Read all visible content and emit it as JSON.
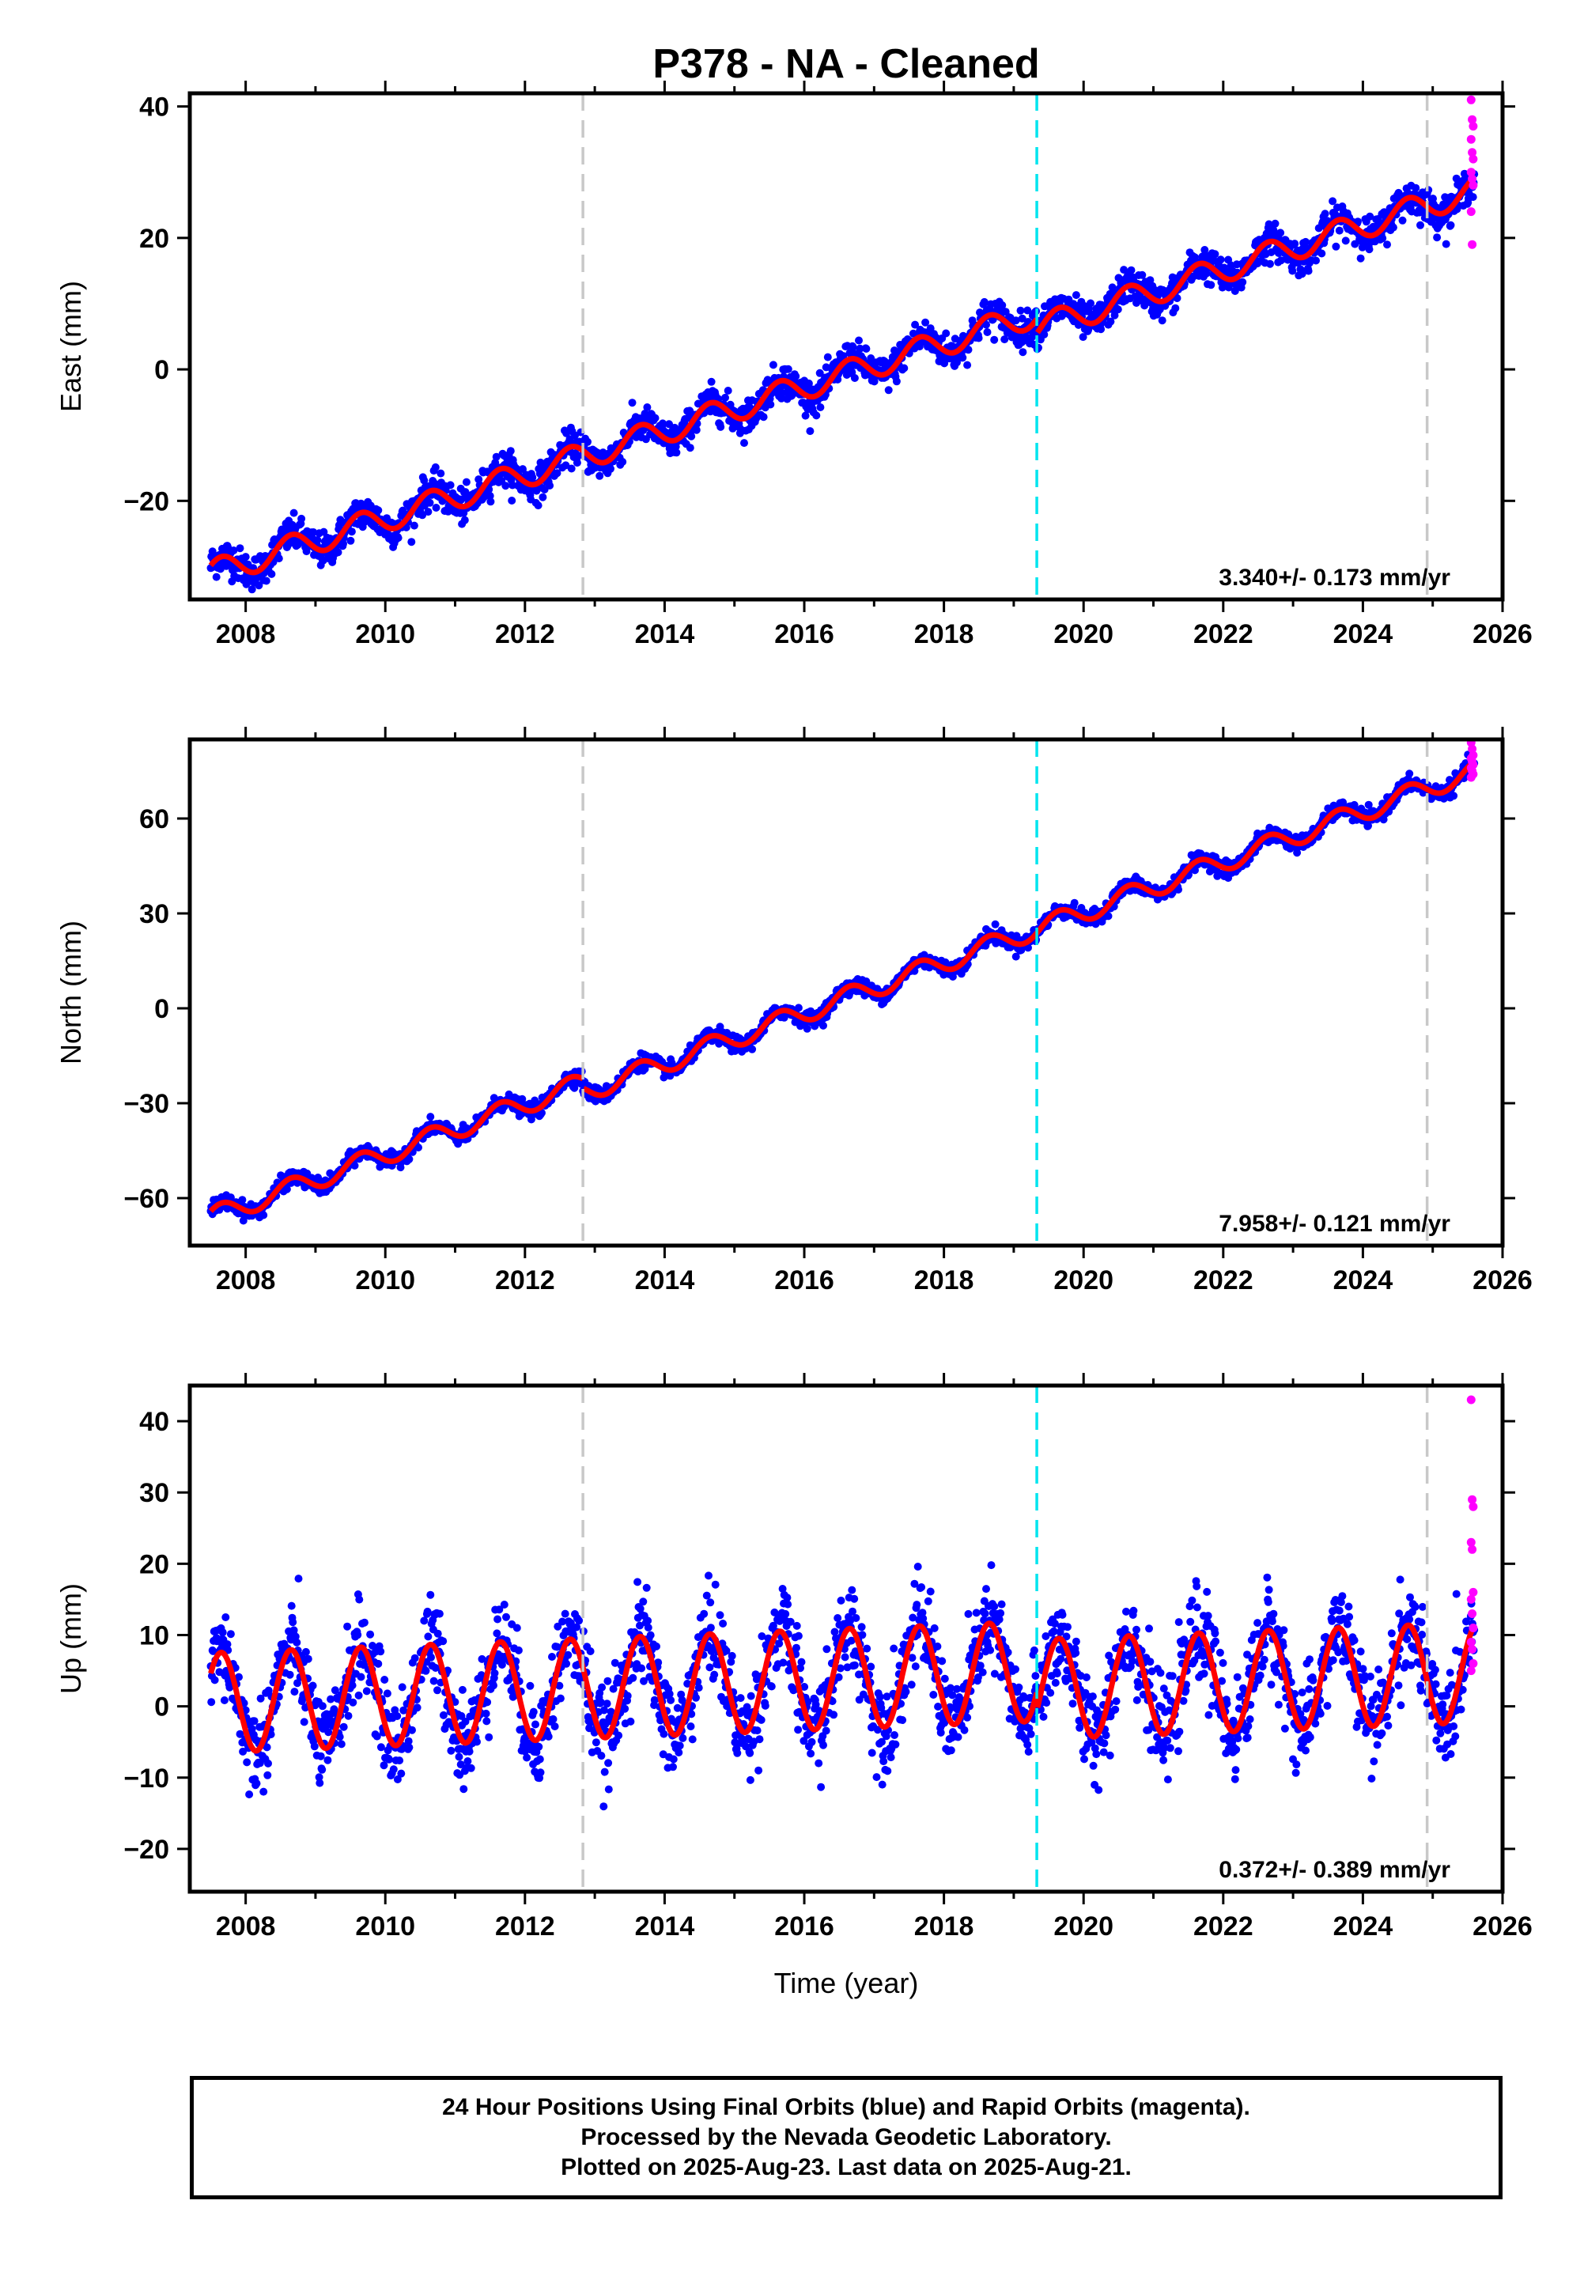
{
  "title": "P378  - NA - Cleaned",
  "colors": {
    "final_points": "#0000ff",
    "rapid_points": "#ff00ff",
    "model": "#ff0000",
    "equipment_change": "#c8c8c8",
    "earthquake": "#00e5ee",
    "frame": "#000000"
  },
  "chart_data": [
    {
      "type": "scatter",
      "ylabel": "East (mm)",
      "xlabel": "",
      "xlim": [
        2007.2,
        2026.0
      ],
      "ylim": [
        -35,
        42
      ],
      "x_ticks": [
        2008,
        2010,
        2012,
        2014,
        2016,
        2018,
        2020,
        2022,
        2024,
        2026
      ],
      "y_ticks": [
        -20,
        0,
        20,
        40
      ],
      "y_tick_labels": [
        "−20",
        "0",
        "20",
        "40"
      ],
      "rate_text": "3.340+/- 0.173 mm/yr",
      "trend_mm_per_yr": 3.34,
      "start_year": 2007.5,
      "end_year": 2025.6,
      "start_value": -31,
      "seasonal_amplitude": 2.0,
      "scatter_sd": 1.3,
      "offsets": [
        {
          "year": 2019.33,
          "value": -2.2
        }
      ],
      "rapid_values": [
        41,
        38,
        37,
        35,
        33,
        32,
        30,
        29,
        28,
        24,
        19
      ],
      "vlines": [
        {
          "year": 2012.83,
          "kind": "equipment_change"
        },
        {
          "year": 2019.33,
          "kind": "earthquake"
        },
        {
          "year": 2024.92,
          "kind": "equipment_change"
        }
      ]
    },
    {
      "type": "scatter",
      "ylabel": "North (mm)",
      "xlabel": "",
      "xlim": [
        2007.2,
        2026.0
      ],
      "ylim": [
        -75,
        85
      ],
      "x_ticks": [
        2008,
        2010,
        2012,
        2014,
        2016,
        2018,
        2020,
        2022,
        2024,
        2026
      ],
      "y_ticks": [
        -60,
        -30,
        0,
        30,
        60
      ],
      "y_tick_labels": [
        "−60",
        "−30",
        "0",
        "30",
        "60"
      ],
      "rate_text": "7.958+/- 0.121 mm/yr",
      "trend_mm_per_yr": 7.958,
      "start_year": 2007.5,
      "end_year": 2025.6,
      "start_value": -66,
      "seasonal_amplitude": 3.2,
      "scatter_sd": 1.2,
      "offsets": [
        {
          "year": 2012.83,
          "value": -3.0
        }
      ],
      "rapid_values": [
        84,
        82,
        80,
        79,
        78,
        77,
        76,
        75,
        74,
        73
      ],
      "vlines": [
        {
          "year": 2012.83,
          "kind": "equipment_change"
        },
        {
          "year": 2019.33,
          "kind": "earthquake"
        },
        {
          "year": 2024.92,
          "kind": "equipment_change"
        }
      ]
    },
    {
      "type": "scatter",
      "ylabel": "Up (mm)",
      "xlabel": "Time (year)",
      "xlim": [
        2007.2,
        2026.0
      ],
      "ylim": [
        -26,
        45
      ],
      "x_ticks": [
        2008,
        2010,
        2012,
        2014,
        2016,
        2018,
        2020,
        2022,
        2024,
        2026
      ],
      "y_ticks": [
        -20,
        -10,
        0,
        10,
        20,
        30,
        40
      ],
      "y_tick_labels": [
        "−20",
        "−10",
        "0",
        "10",
        "20",
        "30",
        "40"
      ],
      "rate_text": "0.372+/- 0.389 mm/yr",
      "trend_mm_per_yr": 0.372,
      "start_year": 2007.5,
      "end_year": 2025.6,
      "start_value": 0.5,
      "seasonal_amplitude": 7.0,
      "scatter_sd": 3.2,
      "offsets": [
        {
          "year": 2019.33,
          "value": -2.5
        }
      ],
      "rapid_values": [
        43,
        29,
        28,
        23,
        22,
        16,
        15,
        13,
        11,
        9,
        8,
        6,
        5
      ],
      "vlines": [
        {
          "year": 2012.83,
          "kind": "equipment_change"
        },
        {
          "year": 2019.33,
          "kind": "earthquake"
        },
        {
          "year": 2024.92,
          "kind": "equipment_change"
        }
      ]
    }
  ],
  "caption": {
    "line1": "24 Hour Positions Using Final Orbits (blue) and Rapid Orbits (magenta).",
    "line2": "Processed by the Nevada Geodetic Laboratory.",
    "line3": "Plotted on 2025-Aug-23. Last data on 2025-Aug-21."
  }
}
